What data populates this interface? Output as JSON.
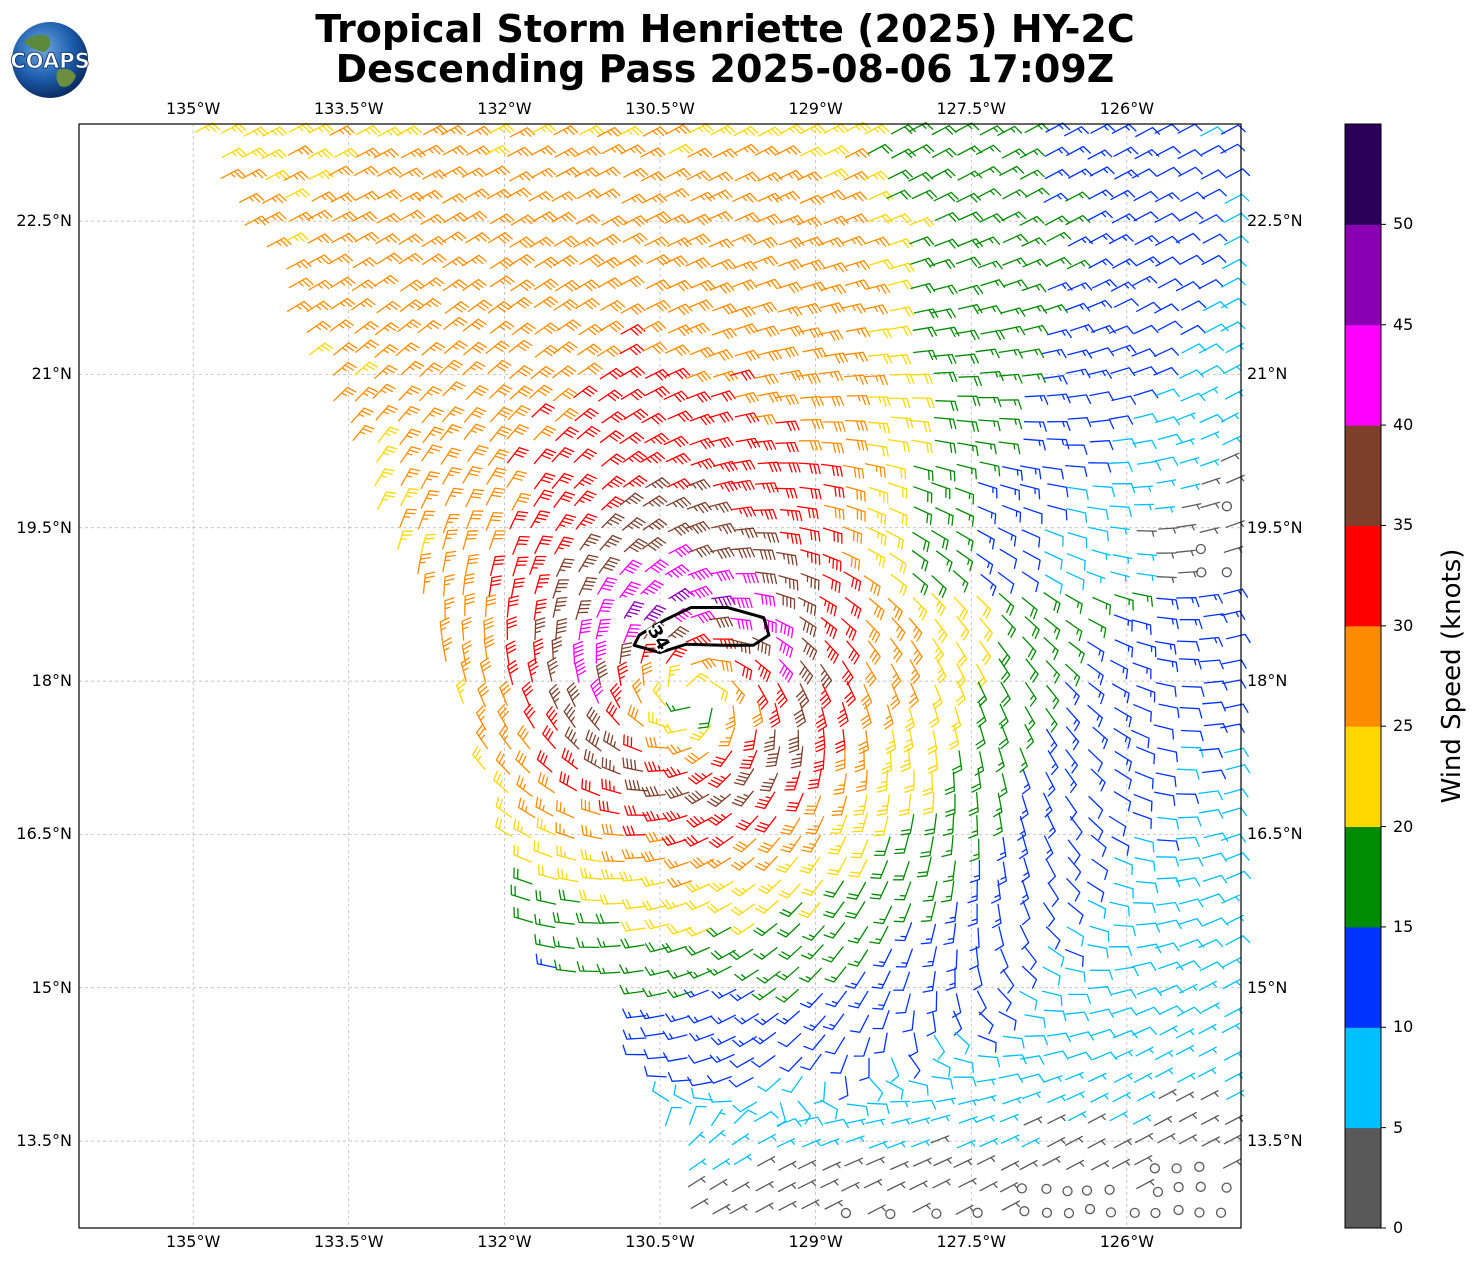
{
  "title_line1": "Tropical Storm Henriette (2025) HY-2C",
  "title_line2": "Descending Pass 2025-08-06 17:09Z",
  "logo_text": "COAPS",
  "chart_data": {
    "type": "map-wind-barbs",
    "extent": {
      "lon": [
        -136.1,
        -124.9
      ],
      "lat": [
        12.65,
        23.45
      ]
    },
    "lon_ticks": [
      -135,
      -133.5,
      -132,
      -130.5,
      -129,
      -127.5,
      -126
    ],
    "lon_tick_labels": [
      "135°W",
      "133.5°W",
      "132°W",
      "130.5°W",
      "129°W",
      "127.5°W",
      "126°W"
    ],
    "lat_ticks": [
      13.5,
      15,
      16.5,
      18,
      19.5,
      21,
      22.5
    ],
    "lat_tick_labels": [
      "13.5°N",
      "15°N",
      "16.5°N",
      "18°N",
      "19.5°N",
      "21°N",
      "22.5°N"
    ],
    "grid": true,
    "storm_center": {
      "lon": -130.2,
      "lat": 17.85
    },
    "contour": {
      "label": "34",
      "level_kt": 34,
      "path": [
        [
          -130.7,
          18.45
        ],
        [
          -130.45,
          18.6
        ],
        [
          -130.2,
          18.72
        ],
        [
          -129.85,
          18.72
        ],
        [
          -129.5,
          18.62
        ],
        [
          -129.45,
          18.45
        ],
        [
          -129.6,
          18.35
        ],
        [
          -129.9,
          18.35
        ],
        [
          -130.25,
          18.36
        ],
        [
          -130.5,
          18.28
        ],
        [
          -130.75,
          18.35
        ]
      ]
    },
    "colorbar": {
      "label": "Wind Speed (knots)",
      "tick_labels": [
        "0",
        "5",
        "10",
        "15",
        "20",
        "25",
        "30",
        "35",
        "40",
        "45",
        "50"
      ],
      "bins": [
        {
          "min": 0,
          "max": 5,
          "color": "#595959"
        },
        {
          "min": 5,
          "max": 10,
          "color": "#00bfff"
        },
        {
          "min": 10,
          "max": 15,
          "color": "#0033ff"
        },
        {
          "min": 15,
          "max": 20,
          "color": "#008c00"
        },
        {
          "min": 20,
          "max": 25,
          "color": "#ffd700"
        },
        {
          "min": 25,
          "max": 30,
          "color": "#ff8c00"
        },
        {
          "min": 30,
          "max": 35,
          "color": "#ff0000"
        },
        {
          "min": 35,
          "max": 40,
          "color": "#803f2b"
        },
        {
          "min": 40,
          "max": 45,
          "color": "#ff00ff"
        },
        {
          "min": 45,
          "max": 50,
          "color": "#8c00b3"
        },
        {
          "min": 50,
          "max": 55,
          "color": "#2b0059"
        }
      ]
    }
  }
}
